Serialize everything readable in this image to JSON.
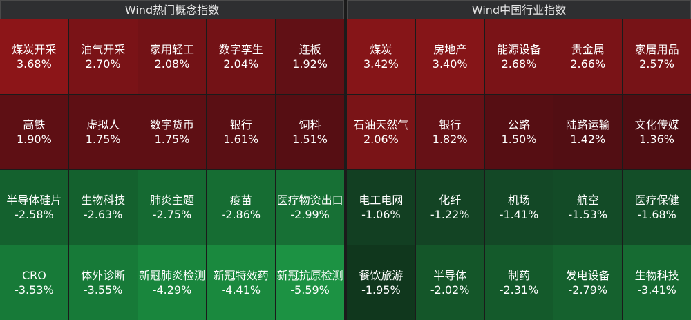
{
  "panels": [
    {
      "title": "Wind热门概念指数",
      "tiles": [
        {
          "name": "煤炭开采",
          "change": "3.68%",
          "color": "#8c1518"
        },
        {
          "name": "油气开采",
          "change": "2.70%",
          "color": "#7a1317"
        },
        {
          "name": "家用轻工",
          "change": "2.08%",
          "color": "#731216"
        },
        {
          "name": "数字孪生",
          "change": "2.04%",
          "color": "#731216"
        },
        {
          "name": "连板",
          "change": "1.92%",
          "color": "#611015"
        },
        {
          "name": "高铁",
          "change": "1.90%",
          "color": "#5e0f14"
        },
        {
          "name": "虚拟人",
          "change": "1.75%",
          "color": "#5e0f14"
        },
        {
          "name": "数字货币",
          "change": "1.75%",
          "color": "#5e0f14"
        },
        {
          "name": "银行",
          "change": "1.61%",
          "color": "#5a0f14"
        },
        {
          "name": "饲料",
          "change": "1.51%",
          "color": "#560e13"
        },
        {
          "name": "半导体硅片",
          "change": "-2.58%",
          "color": "#14612e"
        },
        {
          "name": "生物科技",
          "change": "-2.63%",
          "color": "#14612e"
        },
        {
          "name": "肺炎主题",
          "change": "-2.75%",
          "color": "#156a32"
        },
        {
          "name": "疫苗",
          "change": "-2.86%",
          "color": "#166d33"
        },
        {
          "name": "医疗物资出口",
          "change": "-2.99%",
          "color": "#177035"
        },
        {
          "name": "CRO",
          "change": "-3.53%",
          "color": "#177a38"
        },
        {
          "name": "体外诊断",
          "change": "-3.55%",
          "color": "#177a38"
        },
        {
          "name": "新冠肺炎检测",
          "change": "-4.29%",
          "color": "#19863d"
        },
        {
          "name": "新冠特效药",
          "change": "-4.41%",
          "color": "#1a893e"
        },
        {
          "name": "新冠抗原检测",
          "change": "-5.59%",
          "color": "#1c9243"
        }
      ]
    },
    {
      "title": "Wind中国行业指数",
      "tiles": [
        {
          "name": "煤炭",
          "change": "3.42%",
          "color": "#861518"
        },
        {
          "name": "房地产",
          "change": "3.40%",
          "color": "#861518"
        },
        {
          "name": "能源设备",
          "change": "2.68%",
          "color": "#7a1317"
        },
        {
          "name": "贵金属",
          "change": "2.66%",
          "color": "#7a1317"
        },
        {
          "name": "家居用品",
          "change": "2.57%",
          "color": "#771317"
        },
        {
          "name": "石油天然气",
          "change": "2.06%",
          "color": "#7a1417"
        },
        {
          "name": "银行",
          "change": "1.82%",
          "color": "#661116"
        },
        {
          "name": "公路",
          "change": "1.50%",
          "color": "#560e13"
        },
        {
          "name": "陆路运输",
          "change": "1.42%",
          "color": "#520e13"
        },
        {
          "name": "文化传媒",
          "change": "1.36%",
          "color": "#4f0d12"
        },
        {
          "name": "电工电网",
          "change": "-1.06%",
          "color": "#123f22"
        },
        {
          "name": "化纤",
          "change": "-1.22%",
          "color": "#134424"
        },
        {
          "name": "机场",
          "change": "-1.41%",
          "color": "#134826"
        },
        {
          "name": "航空",
          "change": "-1.53%",
          "color": "#134b27"
        },
        {
          "name": "医疗保健",
          "change": "-1.68%",
          "color": "#134e28"
        },
        {
          "name": "餐饮旅游",
          "change": "-1.95%",
          "color": "#10371d"
        },
        {
          "name": "半导体",
          "change": "-2.02%",
          "color": "#145629"
        },
        {
          "name": "制药",
          "change": "-2.31%",
          "color": "#145a2b"
        },
        {
          "name": "发电设备",
          "change": "-2.79%",
          "color": "#15612e"
        },
        {
          "name": "生物科技",
          "change": "-3.41%",
          "color": "#166b32"
        }
      ]
    }
  ]
}
